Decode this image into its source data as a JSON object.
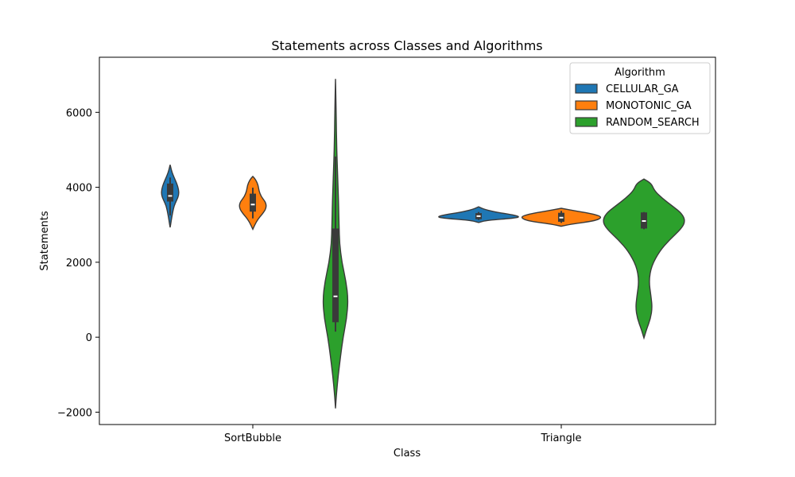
{
  "chart_data": {
    "type": "violin",
    "title": "Statements across Classes and Algorithms",
    "xlabel": "Class",
    "ylabel": "Statements",
    "categories": [
      "SortBubble",
      "Triangle"
    ],
    "ylim": [
      -2330,
      7470
    ],
    "yticks": [
      -2000,
      0,
      2000,
      4000,
      6000
    ],
    "ytick_labels": [
      "−2000",
      "0",
      "2000",
      "4000",
      "6000"
    ],
    "legend": {
      "title": "Algorithm",
      "position": "top-right"
    },
    "series": [
      {
        "name": "CELLULAR_GA",
        "color": "#1f77b4",
        "groups": [
          {
            "category": "SortBubble",
            "range": [
              2930,
              4600
            ],
            "box": {
              "q1": 3620,
              "median": 3770,
              "q3": 4100,
              "whisker_low": 3250,
              "whisker_high": 4260
            },
            "density": [
              [
                2930,
                0.0
              ],
              [
                3100,
                0.12
              ],
              [
                3300,
                0.26
              ],
              [
                3500,
                0.44
              ],
              [
                3650,
                0.74
              ],
              [
                3800,
                1.0
              ],
              [
                3950,
                0.96
              ],
              [
                4100,
                0.76
              ],
              [
                4250,
                0.47
              ],
              [
                4400,
                0.22
              ],
              [
                4500,
                0.1
              ],
              [
                4600,
                0.0
              ]
            ]
          },
          {
            "category": "Triangle",
            "range": [
              3060,
              3480
            ],
            "box": {
              "q1": 3150,
              "median": 3230,
              "q3": 3310,
              "whisker_low": 3130,
              "whisker_high": 3340
            },
            "density": [
              [
                3060,
                0.0
              ],
              [
                3120,
                0.2
              ],
              [
                3180,
                0.9
              ],
              [
                3220,
                1.0
              ],
              [
                3280,
                0.75
              ],
              [
                3350,
                0.35
              ],
              [
                3420,
                0.12
              ],
              [
                3480,
                0.0
              ]
            ]
          }
        ]
      },
      {
        "name": "MONOTONIC_GA",
        "color": "#ff7f0e",
        "groups": [
          {
            "category": "SortBubble",
            "range": [
              2880,
              4290
            ],
            "box": {
              "q1": 3350,
              "median": 3540,
              "q3": 3830,
              "whisker_low": 3170,
              "whisker_high": 3990
            },
            "density": [
              [
                2880,
                0.0
              ],
              [
                3000,
                0.15
              ],
              [
                3150,
                0.38
              ],
              [
                3300,
                0.74
              ],
              [
                3450,
                1.0
              ],
              [
                3600,
                0.96
              ],
              [
                3750,
                0.62
              ],
              [
                3900,
                0.46
              ],
              [
                4050,
                0.4
              ],
              [
                4200,
                0.22
              ],
              [
                4290,
                0.0
              ]
            ]
          },
          {
            "category": "Triangle",
            "range": [
              2960,
              3440
            ],
            "box": {
              "q1": 3080,
              "median": 3190,
              "q3": 3320,
              "whisker_low": 3050,
              "whisker_high": 3370
            },
            "density": [
              [
                2960,
                0.0
              ],
              [
                3020,
                0.25
              ],
              [
                3100,
                0.8
              ],
              [
                3200,
                1.0
              ],
              [
                3280,
                0.8
              ],
              [
                3360,
                0.4
              ],
              [
                3440,
                0.0
              ]
            ]
          }
        ]
      },
      {
        "name": "RANDOM_SEARCH",
        "color": "#2ca02c",
        "groups": [
          {
            "category": "SortBubble",
            "range": [
              -1900,
              6890
            ],
            "box": {
              "q1": 400,
              "median": 1090,
              "q3": 2900,
              "whisker_low": 150,
              "whisker_high": 4820
            },
            "density": [
              [
                -1900,
                0.0
              ],
              [
                -1500,
                0.08
              ],
              [
                -1000,
                0.22
              ],
              [
                -500,
                0.4
              ],
              [
                0,
                0.6
              ],
              [
                500,
                0.88
              ],
              [
                1000,
                1.0
              ],
              [
                1500,
                0.82
              ],
              [
                2000,
                0.5
              ],
              [
                2500,
                0.32
              ],
              [
                3000,
                0.28
              ],
              [
                3500,
                0.25
              ],
              [
                4000,
                0.2
              ],
              [
                4500,
                0.15
              ],
              [
                5000,
                0.1
              ],
              [
                5500,
                0.07
              ],
              [
                6000,
                0.05
              ],
              [
                6500,
                0.025
              ],
              [
                6890,
                0.0
              ]
            ]
          },
          {
            "category": "Triangle",
            "range": [
              -20,
              4220
            ],
            "box": {
              "q1": 2900,
              "median": 3100,
              "q3": 3330,
              "whisker_low": 2880,
              "whisker_high": 3340
            },
            "density": [
              [
                -20,
                0.0
              ],
              [
                200,
                0.06
              ],
              [
                500,
                0.16
              ],
              [
                800,
                0.2
              ],
              [
                1100,
                0.17
              ],
              [
                1500,
                0.12
              ],
              [
                1900,
                0.18
              ],
              [
                2300,
                0.38
              ],
              [
                2600,
                0.62
              ],
              [
                2900,
                0.91
              ],
              [
                3100,
                1.0
              ],
              [
                3300,
                0.92
              ],
              [
                3500,
                0.69
              ],
              [
                3700,
                0.45
              ],
              [
                3900,
                0.26
              ],
              [
                4100,
                0.18
              ],
              [
                4220,
                0.0
              ]
            ]
          }
        ]
      }
    ]
  }
}
